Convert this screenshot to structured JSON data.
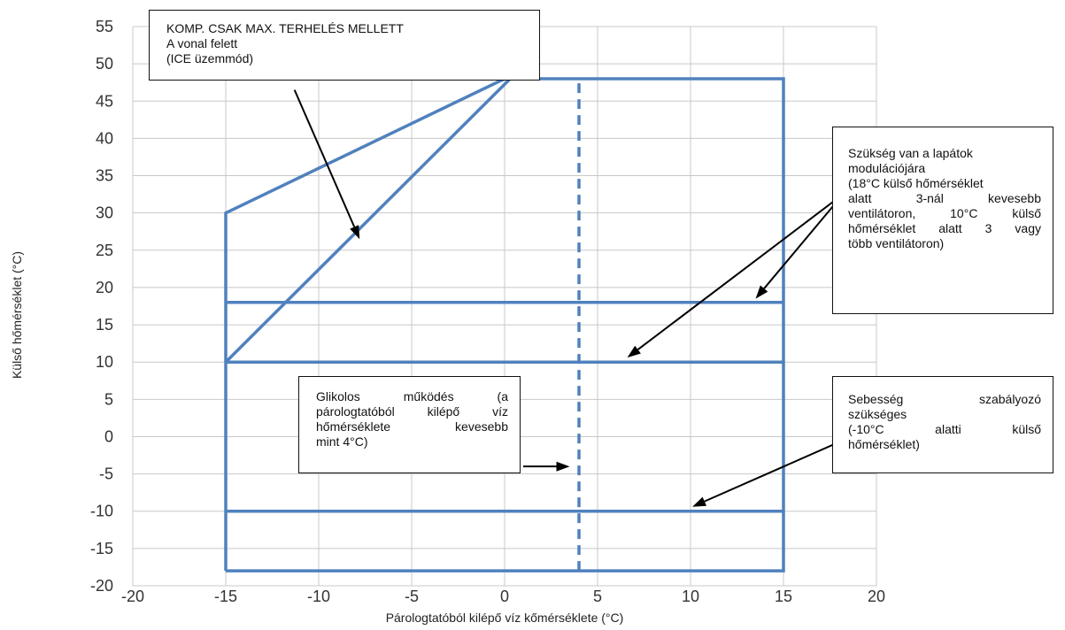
{
  "chart_data": {
    "type": "line",
    "xlabel": "Párologtatóból kilépő víz kőmérséklete (°C)",
    "ylabel": "Külső hőmérséklet (°C)",
    "xlim": [
      -20,
      20
    ],
    "ylim": [
      -20,
      55
    ],
    "x_ticks": [
      "-20",
      "-15",
      "-10",
      "-5",
      "0",
      "5",
      "10",
      "15",
      "20"
    ],
    "y_ticks": [
      "55",
      "50",
      "45",
      "40",
      "35",
      "30",
      "25",
      "20",
      "15",
      "10",
      "5",
      "0",
      "-5",
      "-10",
      "-15",
      "-20"
    ],
    "grid": true,
    "series_color": "#4f81bd",
    "lines": [
      {
        "points": [
          [
            -15,
            -18
          ],
          [
            15,
            -18
          ],
          [
            15,
            48
          ],
          [
            0,
            48
          ],
          [
            -15,
            30
          ],
          [
            -15,
            -18
          ]
        ]
      },
      {
        "points": [
          [
            -15,
            10
          ],
          [
            0.3,
            48
          ]
        ]
      },
      {
        "points": [
          [
            -15,
            18
          ],
          [
            15,
            18
          ]
        ]
      },
      {
        "points": [
          [
            -15,
            10
          ],
          [
            15,
            10
          ]
        ]
      },
      {
        "points": [
          [
            -15,
            -10
          ],
          [
            15,
            -10
          ]
        ]
      },
      {
        "points": [
          [
            4,
            -18
          ],
          [
            4,
            48
          ]
        ],
        "dashed": true
      }
    ],
    "annotations": [
      {
        "id": "ice",
        "lines": [
          "KOMP. CSAK MAX. TERHELÉS MELLETT",
          "A vonal felett",
          "(ICE üzemmód)"
        ]
      },
      {
        "id": "fan",
        "lines": [
          "Szükség van a lapátok",
          "modulációjára",
          "(18°C külső hőmérséklet",
          "alatt 3-nál kevesebb",
          "ventilátoron, 10°C külső",
          "hőmérséklet alatt 3 vagy",
          "több ventilátoron)"
        ]
      },
      {
        "id": "glycol",
        "lines": [
          "Glikolos működés (a",
          "párologtatóból kilépő víz",
          "hőmérséklete kevesebb",
          "mint 4°C)"
        ]
      },
      {
        "id": "speed",
        "lines": [
          "Sebesség szabályozó",
          "szükséges",
          "(-10°C alatti külső",
          "hőmérséklet)"
        ]
      }
    ],
    "arrows": [
      {
        "from": [
          -11.3,
          46.5
        ],
        "to": [
          -7.8,
          26.5
        ]
      },
      {
        "from": [
          18.2,
          32.5
        ],
        "to": [
          13.5,
          18.5
        ]
      },
      {
        "from": [
          18.2,
          32.5
        ],
        "to": [
          6.6,
          10.6
        ]
      },
      {
        "from": [
          1.0,
          -4.0
        ],
        "to": [
          3.5,
          -4.0
        ]
      },
      {
        "from": [
          18.2,
          -0.5
        ],
        "to": [
          10.1,
          -9.4
        ]
      }
    ]
  }
}
